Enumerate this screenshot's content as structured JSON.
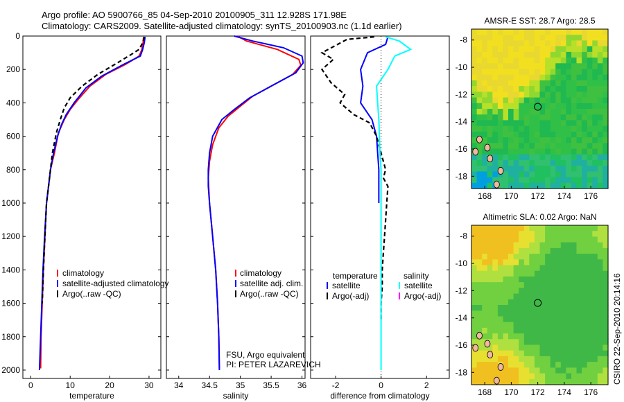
{
  "title_line1": "Argo profile: AO 5900766_85 04-Sep-2010 20100905_311 12.928S 171.98E",
  "title_line2": "Climatology: CARS2009. Satellite-adjusted climatology: synTS_20100903.nc (1.1d earlier)",
  "footer_vertical": "CSIRO 22-Sep-2010 20:14:16",
  "colors": {
    "climatology": "#ff0000",
    "satellite": "#0000ff",
    "argo": "#000000",
    "salinity_sat": "#00ffff",
    "salinity_argo": "#ff00ff"
  },
  "chart_data": [
    {
      "id": "temperature",
      "type": "line",
      "xlabel": "temperature",
      "xlim": [
        -2,
        33
      ],
      "ylim": [
        2050,
        0
      ],
      "xticks": [
        0,
        10,
        20,
        30
      ],
      "yticks": [
        0,
        200,
        400,
        600,
        800,
        1000,
        1200,
        1400,
        1600,
        1800,
        2000
      ],
      "legend": [
        "climatology",
        "satellite-adjusted climatology",
        "Argo(..raw -QC)"
      ],
      "series": [
        {
          "name": "climatology",
          "color": "#ff0000",
          "dash": false,
          "points": [
            [
              28.6,
              5
            ],
            [
              28.5,
              40
            ],
            [
              28.2,
              80
            ],
            [
              27.5,
              120
            ],
            [
              24,
              170
            ],
            [
              19,
              230
            ],
            [
              15,
              300
            ],
            [
              12,
              380
            ],
            [
              10,
              440
            ],
            [
              8.5,
              500
            ],
            [
              7,
              580
            ],
            [
              6,
              700
            ],
            [
              5,
              800
            ],
            [
              4.5,
              900
            ],
            [
              4,
              1000
            ],
            [
              3.6,
              1200
            ],
            [
              3.2,
              1400
            ],
            [
              2.9,
              1600
            ],
            [
              2.6,
              1800
            ],
            [
              2.5,
              1990
            ]
          ]
        },
        {
          "name": "satellite-adjusted climatology",
          "color": "#0000ff",
          "dash": false,
          "points": [
            [
              29,
              5
            ],
            [
              28.8,
              40
            ],
            [
              28.4,
              80
            ],
            [
              27.8,
              120
            ],
            [
              23.5,
              170
            ],
            [
              18,
              240
            ],
            [
              14,
              310
            ],
            [
              11,
              400
            ],
            [
              9,
              470
            ],
            [
              7.8,
              530
            ],
            [
              6.8,
              600
            ],
            [
              5.8,
              700
            ],
            [
              5,
              800
            ],
            [
              4.5,
              900
            ],
            [
              4,
              1000
            ],
            [
              3.5,
              1200
            ],
            [
              3.1,
              1400
            ],
            [
              2.8,
              1600
            ],
            [
              2.5,
              1800
            ],
            [
              2.2,
              2000
            ]
          ]
        },
        {
          "name": "Argo(..raw -QC)",
          "color": "#000000",
          "dash": true,
          "points": [
            [
              28.8,
              5
            ],
            [
              28.4,
              40
            ],
            [
              27.5,
              80
            ],
            [
              25.5,
              110
            ],
            [
              22,
              160
            ],
            [
              17,
              230
            ],
            [
              13,
              300
            ],
            [
              10,
              370
            ],
            [
              8.5,
              430
            ],
            [
              7.5,
              500
            ],
            [
              6.5,
              580
            ],
            [
              5.5,
              700
            ],
            [
              5,
              800
            ],
            [
              4.5,
              900
            ],
            [
              4,
              1000
            ],
            [
              3.6,
              1200
            ],
            [
              3.2,
              1400
            ],
            [
              2.9,
              1600
            ]
          ]
        }
      ]
    },
    {
      "id": "salinity",
      "type": "line",
      "xlabel": "salinity",
      "xlim": [
        33.8,
        36.05
      ],
      "ylim": [
        2050,
        0
      ],
      "xticks": [
        34,
        34.5,
        35,
        35.5,
        36
      ],
      "xticklabels": [
        "34",
        "34.5",
        "35",
        "35.5",
        "36"
      ],
      "legend": [
        "climatology",
        "satellite adj. clim.",
        "Argo(..raw -QC)"
      ],
      "annotations": [
        "FSU, Argo equivalent",
        "PI: PETER LAZAREVICH"
      ],
      "series": [
        {
          "name": "climatology",
          "color": "#ff0000",
          "dash": false,
          "points": [
            [
              34.95,
              0
            ],
            [
              35.1,
              30
            ],
            [
              35.6,
              80
            ],
            [
              35.95,
              140
            ],
            [
              35.98,
              175
            ],
            [
              35.85,
              230
            ],
            [
              35.5,
              300
            ],
            [
              35.2,
              360
            ],
            [
              35.0,
              420
            ],
            [
              34.8,
              480
            ],
            [
              34.65,
              550
            ],
            [
              34.55,
              650
            ],
            [
              34.5,
              750
            ],
            [
              34.48,
              850
            ],
            [
              34.5,
              1000
            ],
            [
              34.55,
              1200
            ],
            [
              34.6,
              1400
            ],
            [
              34.63,
              1600
            ],
            [
              34.65,
              1800
            ],
            [
              34.66,
              1990
            ]
          ]
        },
        {
          "name": "satellite adj. clim.",
          "color": "#0000ff",
          "dash": false,
          "points": [
            [
              34.9,
              0
            ],
            [
              35.2,
              30
            ],
            [
              35.7,
              70
            ],
            [
              36.0,
              120
            ],
            [
              36.02,
              160
            ],
            [
              35.9,
              220
            ],
            [
              35.5,
              300
            ],
            [
              35.15,
              370
            ],
            [
              34.9,
              440
            ],
            [
              34.7,
              500
            ],
            [
              34.55,
              600
            ],
            [
              34.5,
              700
            ],
            [
              34.48,
              800
            ],
            [
              34.48,
              900
            ],
            [
              34.5,
              1000
            ],
            [
              34.55,
              1200
            ],
            [
              34.6,
              1400
            ],
            [
              34.63,
              1600
            ],
            [
              34.65,
              1800
            ],
            [
              34.66,
              2000
            ]
          ]
        }
      ]
    },
    {
      "id": "difference",
      "type": "line",
      "xlabel": "difference from climatology",
      "xlim": [
        -3.1,
        3.0
      ],
      "ylim": [
        2050,
        0
      ],
      "xticks": [
        -2,
        0,
        2
      ],
      "xticklabels": [
        "-2",
        "0",
        "2"
      ],
      "legend_headers": [
        "temperature",
        "salinity"
      ],
      "legend": [
        "satellite",
        "Argo(-adj)",
        "satellite",
        "Argo(-adj)"
      ],
      "series": [
        {
          "name": "temperature satellite",
          "color": "#0000ff",
          "dash": false,
          "points": [
            [
              0.3,
              5
            ],
            [
              0.2,
              50
            ],
            [
              -0.6,
              100
            ],
            [
              -0.9,
              200
            ],
            [
              -0.8,
              300
            ],
            [
              -0.9,
              400
            ],
            [
              -0.4,
              500
            ],
            [
              -0.2,
              600
            ],
            [
              -0.15,
              700
            ],
            [
              -0.1,
              800
            ],
            [
              -0.1,
              1000
            ]
          ]
        },
        {
          "name": "temperature Argo(-adj)",
          "color": "#000000",
          "dash": true,
          "points": [
            [
              -0.3,
              5
            ],
            [
              -1.5,
              20
            ],
            [
              -2.6,
              100
            ],
            [
              -2.1,
              140
            ],
            [
              -2.6,
              200
            ],
            [
              -2.2,
              280
            ],
            [
              -1.6,
              350
            ],
            [
              -1.8,
              400
            ],
            [
              -1.2,
              470
            ],
            [
              -0.5,
              520
            ],
            [
              -0.2,
              600
            ],
            [
              0,
              700
            ],
            [
              0.2,
              800
            ],
            [
              0.1,
              850
            ],
            [
              0.3,
              900
            ],
            [
              0.25,
              1000
            ],
            [
              0.2,
              1100
            ],
            [
              0.15,
              1200
            ],
            [
              0.1,
              1300
            ],
            [
              0.05,
              1400
            ],
            [
              0.05,
              1500
            ],
            [
              0,
              1600
            ],
            [
              0,
              1700
            ]
          ]
        },
        {
          "name": "salinity satellite",
          "color": "#00ffff",
          "dash": false,
          "points": [
            [
              0.2,
              5
            ],
            [
              0.8,
              30
            ],
            [
              1.3,
              80
            ],
            [
              0.6,
              120
            ],
            [
              0.3,
              200
            ],
            [
              -0.2,
              300
            ],
            [
              -0.15,
              400
            ],
            [
              -0.1,
              500
            ],
            [
              -0.05,
              700
            ],
            [
              0,
              800
            ],
            [
              0,
              1000
            ],
            [
              0,
              1200
            ],
            [
              0,
              1400
            ],
            [
              0,
              1600
            ],
            [
              0,
              1800
            ],
            [
              0,
              2000
            ]
          ]
        }
      ]
    },
    {
      "id": "sst_map",
      "type": "heatmap",
      "title": "AMSR-E SST: 28.7 Argo: 28.5",
      "xlim": [
        167,
        177.3
      ],
      "ylim": [
        -18.9,
        -7.2
      ],
      "xticks": [
        168,
        170,
        172,
        174,
        176
      ],
      "yticks": [
        -8,
        -10,
        -12,
        -14,
        -16,
        -18
      ],
      "marker": [
        172,
        -12.9
      ]
    },
    {
      "id": "sla_map",
      "type": "heatmap",
      "title": "Altimetric SLA: 0.02 Argo: NaN",
      "xlim": [
        167,
        177.3
      ],
      "ylim": [
        -18.9,
        -7.2
      ],
      "xticks": [
        168,
        170,
        172,
        174,
        176
      ],
      "yticks": [
        -8,
        -10,
        -12,
        -14,
        -16,
        -18
      ],
      "marker": [
        172,
        -12.9
      ]
    }
  ]
}
